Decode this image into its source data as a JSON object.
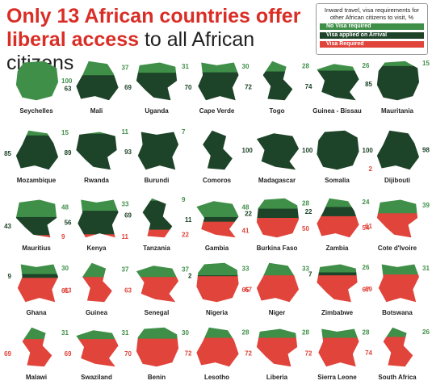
{
  "title": {
    "part1": "Only 13 African countries offer",
    "part2": "liberal access",
    "part3": " to all African citizens"
  },
  "legend": {
    "title": "Inward travel, visa requirements for other African citizens to visit, %",
    "items": [
      {
        "label": "No Visa required",
        "color": "#3f8f48"
      },
      {
        "label": "Visa applied on Arrival",
        "color": "#1d4428"
      },
      {
        "label": "Visa Required",
        "color": "#e0443b"
      }
    ]
  },
  "chart_data": {
    "type": "map",
    "series_names": [
      "No Visa required",
      "Visa applied on Arrival",
      "Visa Required"
    ],
    "countries": [
      {
        "name": "Seychelles",
        "no_visa": 100,
        "on_arrival": 0,
        "required": 0
      },
      {
        "name": "Mali",
        "no_visa": 37,
        "on_arrival": 63,
        "required": 0
      },
      {
        "name": "Uganda",
        "no_visa": 31,
        "on_arrival": 69,
        "required": 0
      },
      {
        "name": "Cape Verde",
        "no_visa": 30,
        "on_arrival": 70,
        "required": 0
      },
      {
        "name": "Togo",
        "no_visa": 28,
        "on_arrival": 72,
        "required": 0
      },
      {
        "name": "Guinea - Bissau",
        "no_visa": 26,
        "on_arrival": 74,
        "required": 0
      },
      {
        "name": "Mauritania",
        "no_visa": 15,
        "on_arrival": 85,
        "required": 0
      },
      {
        "name": "Mozambique",
        "no_visa": 15,
        "on_arrival": 85,
        "required": 0
      },
      {
        "name": "Rwanda",
        "no_visa": 11,
        "on_arrival": 89,
        "required": 0
      },
      {
        "name": "Burundi",
        "no_visa": 7,
        "on_arrival": 93,
        "required": 0
      },
      {
        "name": "Comoros",
        "no_visa": 0,
        "on_arrival": 100,
        "required": 0
      },
      {
        "name": "Madagascar",
        "no_visa": 0,
        "on_arrival": 100,
        "required": 0
      },
      {
        "name": "Somalia",
        "no_visa": 0,
        "on_arrival": 100,
        "required": 0
      },
      {
        "name": "Dijibouti",
        "no_visa": 0,
        "on_arrival": 98,
        "required": 2
      },
      {
        "name": "Mauritius",
        "no_visa": 48,
        "on_arrival": 43,
        "required": 9
      },
      {
        "name": "Kenya",
        "no_visa": 33,
        "on_arrival": 56,
        "required": 11
      },
      {
        "name": "Tanzania",
        "no_visa": 9,
        "on_arrival": 69,
        "required": 22
      },
      {
        "name": "Gambia",
        "no_visa": 48,
        "on_arrival": 11,
        "required": 41
      },
      {
        "name": "Burkina Faso",
        "no_visa": 28,
        "on_arrival": 22,
        "required": 50
      },
      {
        "name": "Zambia",
        "no_visa": 24,
        "on_arrival": 22,
        "required": 54
      },
      {
        "name": "Cote d'Ivoire",
        "no_visa": 39,
        "on_arrival": 0,
        "required": 61
      },
      {
        "name": "Ghana",
        "no_visa": 30,
        "on_arrival": 9,
        "required": 61
      },
      {
        "name": "Guinea",
        "no_visa": 37,
        "on_arrival": 0,
        "required": 63
      },
      {
        "name": "Senegal",
        "no_visa": 37,
        "on_arrival": 0,
        "required": 63
      },
      {
        "name": "Nigeria",
        "no_visa": 33,
        "on_arrival": 2,
        "required": 65
      },
      {
        "name": "Niger",
        "no_visa": 33,
        "on_arrival": 0,
        "required": 67
      },
      {
        "name": "Zimbabwe",
        "no_visa": 26,
        "on_arrival": 7,
        "required": 67
      },
      {
        "name": "Botswana",
        "no_visa": 31,
        "on_arrival": 0,
        "required": 69
      },
      {
        "name": "Malawi",
        "no_visa": 31,
        "on_arrival": 0,
        "required": 69
      },
      {
        "name": "Swaziland",
        "no_visa": 31,
        "on_arrival": 0,
        "required": 69
      },
      {
        "name": "Benin",
        "no_visa": 30,
        "on_arrival": 0,
        "required": 70
      },
      {
        "name": "Lesotho",
        "no_visa": 28,
        "on_arrival": 0,
        "required": 72
      },
      {
        "name": "Liberia",
        "no_visa": 28,
        "on_arrival": 0,
        "required": 72
      },
      {
        "name": "Sierra Leone",
        "no_visa": 28,
        "on_arrival": 0,
        "required": 72
      },
      {
        "name": "South Africa",
        "no_visa": 26,
        "on_arrival": 0,
        "required": 74
      }
    ]
  }
}
